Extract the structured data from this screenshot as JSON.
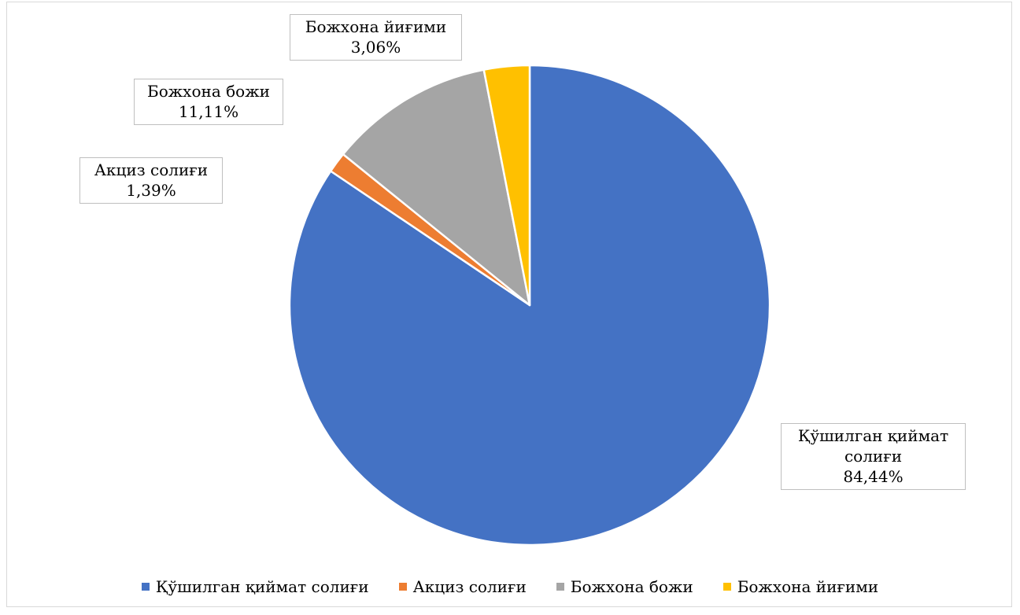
{
  "chart_data": {
    "type": "pie",
    "title": "",
    "slices": [
      {
        "name": "Қўшилган қиймат солиғи",
        "value": 84.44,
        "label_lines": [
          "Қўшилган қиймат",
          "солиғи",
          "84,44%"
        ],
        "color": "#4472C4"
      },
      {
        "name": "Акциз солиғи",
        "value": 1.39,
        "label_lines": [
          "Акциз солиғи",
          "1,39%"
        ],
        "color": "#ED7D31"
      },
      {
        "name": "Божхона божи",
        "value": 11.11,
        "label_lines": [
          "Божхона божи",
          "11,11%"
        ],
        "color": "#A5A5A5"
      },
      {
        "name": "Божхона йиғими",
        "value": 3.06,
        "label_lines": [
          "Божхона йиғими",
          "3,06%"
        ],
        "color": "#FFC000"
      }
    ],
    "legend": {
      "position": "bottom"
    },
    "start_angle": "top",
    "direction": "clockwise"
  }
}
